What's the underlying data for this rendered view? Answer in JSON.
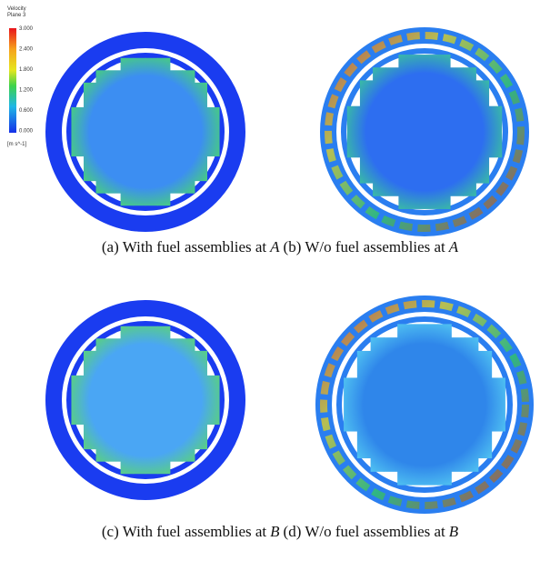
{
  "colorbar": {
    "title": "Velocity",
    "subtitle": "Plane 3",
    "ticks": [
      "3.000",
      "2.400",
      "1.800",
      "1.200",
      "0.600",
      "0.000"
    ],
    "unit": "[m s^-1]"
  },
  "panels": [
    {
      "label": "(a)",
      "text": "With fuel assemblies at",
      "var": "A"
    },
    {
      "label": "(b)",
      "text": "W/o fuel assemblies at",
      "var": "A"
    },
    {
      "label": "(c)",
      "text": "With fuel assemblies at",
      "var": "B"
    },
    {
      "label": "(d)",
      "text": "W/o fuel assemblies at",
      "var": "B"
    }
  ]
}
